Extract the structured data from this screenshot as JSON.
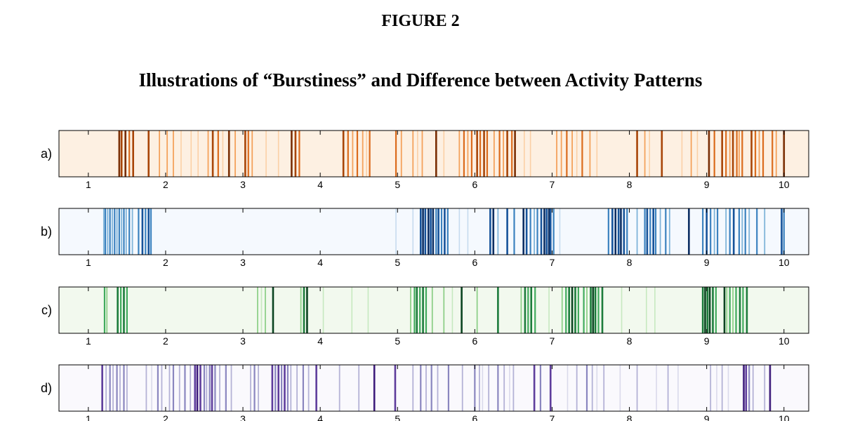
{
  "figure": {
    "label": "FIGURE 2",
    "title": "Illustrations of “Burstiness” and Difference between Activity Patterns"
  },
  "chart_data": {
    "type": "heatmap",
    "xlim": [
      0.62,
      10.32
    ],
    "xticks": [
      1,
      2,
      3,
      4,
      5,
      6,
      7,
      8,
      9,
      10
    ],
    "grid": false,
    "rows": [
      {
        "label": "a)",
        "colormap": "orange",
        "background": "#fdf0e2",
        "palette": [
          "#fbd0a6",
          "#f4a25c",
          "#db6b1c",
          "#a84508",
          "#7a2e04"
        ],
        "events": [
          [
            1.4,
            4
          ],
          [
            1.43,
            3
          ],
          [
            1.48,
            4
          ],
          [
            1.53,
            2
          ],
          [
            1.58,
            3
          ],
          [
            1.78,
            3
          ],
          [
            1.92,
            1
          ],
          [
            2.02,
            1
          ],
          [
            2.1,
            1
          ],
          [
            2.2,
            0
          ],
          [
            2.33,
            0
          ],
          [
            2.42,
            0
          ],
          [
            2.55,
            1
          ],
          [
            2.61,
            3
          ],
          [
            2.68,
            2
          ],
          [
            2.74,
            0
          ],
          [
            2.82,
            4
          ],
          [
            2.9,
            1
          ],
          [
            3.03,
            3
          ],
          [
            3.07,
            2
          ],
          [
            3.12,
            1
          ],
          [
            3.3,
            0
          ],
          [
            3.46,
            0
          ],
          [
            3.63,
            4
          ],
          [
            3.68,
            3
          ],
          [
            3.73,
            2
          ],
          [
            4.3,
            3
          ],
          [
            4.36,
            2
          ],
          [
            4.42,
            1
          ],
          [
            4.48,
            2
          ],
          [
            4.55,
            1
          ],
          [
            4.6,
            0
          ],
          [
            4.64,
            2
          ],
          [
            4.98,
            2
          ],
          [
            5.05,
            1
          ],
          [
            5.2,
            1
          ],
          [
            5.26,
            0
          ],
          [
            5.32,
            1
          ],
          [
            5.5,
            4
          ],
          [
            5.6,
            0
          ],
          [
            5.8,
            1
          ],
          [
            5.86,
            2
          ],
          [
            5.91,
            1
          ],
          [
            5.96,
            2
          ],
          [
            6.03,
            3
          ],
          [
            6.07,
            2
          ],
          [
            6.12,
            3
          ],
          [
            6.16,
            2
          ],
          [
            6.25,
            1
          ],
          [
            6.32,
            2
          ],
          [
            6.37,
            1
          ],
          [
            6.42,
            3
          ],
          [
            6.48,
            2
          ],
          [
            6.52,
            4
          ],
          [
            6.64,
            0
          ],
          [
            6.72,
            0
          ],
          [
            7.06,
            1
          ],
          [
            7.12,
            1
          ],
          [
            7.19,
            2
          ],
          [
            7.26,
            1
          ],
          [
            7.32,
            0
          ],
          [
            7.39,
            2
          ],
          [
            7.49,
            1
          ],
          [
            7.58,
            0
          ],
          [
            8.1,
            3
          ],
          [
            8.2,
            1
          ],
          [
            8.26,
            0
          ],
          [
            8.42,
            3
          ],
          [
            8.68,
            0
          ],
          [
            8.8,
            1
          ],
          [
            8.88,
            0
          ],
          [
            9.03,
            4
          ],
          [
            9.1,
            2
          ],
          [
            9.2,
            3
          ],
          [
            9.25,
            2
          ],
          [
            9.3,
            1
          ],
          [
            9.34,
            3
          ],
          [
            9.39,
            2
          ],
          [
            9.42,
            1
          ],
          [
            9.46,
            2
          ],
          [
            9.58,
            3
          ],
          [
            9.63,
            2
          ],
          [
            9.68,
            1
          ],
          [
            9.73,
            2
          ],
          [
            9.85,
            2
          ],
          [
            9.9,
            1
          ],
          [
            10.0,
            4
          ]
        ]
      },
      {
        "label": "b)",
        "colormap": "blue",
        "background": "#f5f9fe",
        "palette": [
          "#c6dbef",
          "#7fb4d9",
          "#3b82bf",
          "#16539a",
          "#0b2e63"
        ],
        "events": [
          [
            1.2,
            1
          ],
          [
            1.22,
            2
          ],
          [
            1.25,
            1
          ],
          [
            1.28,
            2
          ],
          [
            1.31,
            1
          ],
          [
            1.34,
            2
          ],
          [
            1.37,
            1
          ],
          [
            1.4,
            2
          ],
          [
            1.43,
            1
          ],
          [
            1.46,
            2
          ],
          [
            1.49,
            1
          ],
          [
            1.53,
            2
          ],
          [
            1.57,
            1
          ],
          [
            1.65,
            2
          ],
          [
            1.7,
            3
          ],
          [
            1.74,
            2
          ],
          [
            1.78,
            3
          ],
          [
            1.81,
            2
          ],
          [
            4.98,
            0
          ],
          [
            5.2,
            0
          ],
          [
            5.3,
            3
          ],
          [
            5.33,
            4
          ],
          [
            5.36,
            3
          ],
          [
            5.4,
            4
          ],
          [
            5.43,
            3
          ],
          [
            5.46,
            4
          ],
          [
            5.5,
            2
          ],
          [
            5.53,
            3
          ],
          [
            5.57,
            2
          ],
          [
            5.61,
            3
          ],
          [
            5.65,
            2
          ],
          [
            5.8,
            0
          ],
          [
            5.91,
            0
          ],
          [
            6.2,
            3
          ],
          [
            6.24,
            4
          ],
          [
            6.3,
            1
          ],
          [
            6.42,
            3
          ],
          [
            6.51,
            2
          ],
          [
            6.63,
            4
          ],
          [
            6.67,
            3
          ],
          [
            6.72,
            2
          ],
          [
            6.77,
            1
          ],
          [
            6.81,
            2
          ],
          [
            6.86,
            3
          ],
          [
            6.9,
            4
          ],
          [
            6.93,
            3
          ],
          [
            6.96,
            4
          ],
          [
            6.98,
            3
          ],
          [
            7.02,
            2
          ],
          [
            7.1,
            0
          ],
          [
            7.73,
            2
          ],
          [
            7.78,
            3
          ],
          [
            7.82,
            4
          ],
          [
            7.86,
            3
          ],
          [
            7.89,
            4
          ],
          [
            7.93,
            3
          ],
          [
            7.97,
            2
          ],
          [
            8.1,
            1
          ],
          [
            8.2,
            2
          ],
          [
            8.23,
            3
          ],
          [
            8.27,
            2
          ],
          [
            8.31,
            3
          ],
          [
            8.34,
            2
          ],
          [
            8.4,
            1
          ],
          [
            8.47,
            2
          ],
          [
            8.52,
            1
          ],
          [
            8.77,
            4
          ],
          [
            8.95,
            2
          ],
          [
            9.0,
            3
          ],
          [
            9.05,
            2
          ],
          [
            9.1,
            1
          ],
          [
            9.14,
            2
          ],
          [
            9.25,
            1
          ],
          [
            9.3,
            2
          ],
          [
            9.35,
            3
          ],
          [
            9.42,
            2
          ],
          [
            9.46,
            1
          ],
          [
            9.5,
            2
          ],
          [
            9.55,
            1
          ],
          [
            9.65,
            2
          ],
          [
            9.75,
            1
          ],
          [
            9.97,
            3
          ],
          [
            10.0,
            2
          ]
        ]
      },
      {
        "label": "c)",
        "colormap": "green",
        "background": "#f2f9ee",
        "palette": [
          "#c7e9c0",
          "#8fd089",
          "#41ab5d",
          "#1c7c3b",
          "#0a4420"
        ],
        "events": [
          [
            1.21,
            2
          ],
          [
            1.24,
            1
          ],
          [
            1.38,
            3
          ],
          [
            1.42,
            2
          ],
          [
            1.46,
            3
          ],
          [
            1.5,
            2
          ],
          [
            3.19,
            1
          ],
          [
            3.24,
            0
          ],
          [
            3.29,
            1
          ],
          [
            3.39,
            4
          ],
          [
            3.75,
            1
          ],
          [
            3.79,
            3
          ],
          [
            3.83,
            4
          ],
          [
            4.04,
            0
          ],
          [
            4.41,
            0
          ],
          [
            4.62,
            0
          ],
          [
            5.17,
            1
          ],
          [
            5.22,
            2
          ],
          [
            5.25,
            3
          ],
          [
            5.29,
            2
          ],
          [
            5.33,
            3
          ],
          [
            5.37,
            2
          ],
          [
            5.45,
            1
          ],
          [
            5.6,
            1
          ],
          [
            5.71,
            0
          ],
          [
            5.83,
            4
          ],
          [
            6.03,
            1
          ],
          [
            6.3,
            3
          ],
          [
            6.6,
            1
          ],
          [
            6.65,
            3
          ],
          [
            6.69,
            2
          ],
          [
            6.73,
            3
          ],
          [
            6.78,
            2
          ],
          [
            6.96,
            0
          ],
          [
            7.13,
            1
          ],
          [
            7.18,
            2
          ],
          [
            7.22,
            3
          ],
          [
            7.26,
            4
          ],
          [
            7.3,
            3
          ],
          [
            7.34,
            2
          ],
          [
            7.41,
            2
          ],
          [
            7.45,
            1
          ],
          [
            7.5,
            3
          ],
          [
            7.53,
            4
          ],
          [
            7.56,
            3
          ],
          [
            7.6,
            2
          ],
          [
            7.65,
            3
          ],
          [
            7.9,
            0
          ],
          [
            8.22,
            0
          ],
          [
            8.33,
            0
          ],
          [
            8.95,
            3
          ],
          [
            8.98,
            4
          ],
          [
            9.01,
            3
          ],
          [
            9.04,
            4
          ],
          [
            9.08,
            3
          ],
          [
            9.12,
            2
          ],
          [
            9.23,
            4
          ],
          [
            9.26,
            1
          ],
          [
            9.3,
            2
          ],
          [
            9.34,
            1
          ],
          [
            9.38,
            2
          ],
          [
            9.43,
            3
          ],
          [
            9.47,
            2
          ],
          [
            9.52,
            3
          ]
        ]
      },
      {
        "label": "d)",
        "colormap": "purple",
        "background": "#faf9fd",
        "palette": [
          "#dadaeb",
          "#b4b2d6",
          "#8a86bf",
          "#5e3d9c",
          "#3f1d7c"
        ],
        "events": [
          [
            1.18,
            3
          ],
          [
            1.23,
            1
          ],
          [
            1.28,
            2
          ],
          [
            1.32,
            1
          ],
          [
            1.37,
            2
          ],
          [
            1.41,
            1
          ],
          [
            1.46,
            2
          ],
          [
            1.5,
            1
          ],
          [
            1.75,
            1
          ],
          [
            1.82,
            0
          ],
          [
            1.9,
            2
          ],
          [
            1.95,
            1
          ],
          [
            2.05,
            1
          ],
          [
            2.1,
            2
          ],
          [
            2.18,
            1
          ],
          [
            2.25,
            2
          ],
          [
            2.32,
            1
          ],
          [
            2.38,
            3
          ],
          [
            2.41,
            4
          ],
          [
            2.45,
            3
          ],
          [
            2.5,
            2
          ],
          [
            2.53,
            1
          ],
          [
            2.57,
            2
          ],
          [
            2.6,
            3
          ],
          [
            2.64,
            2
          ],
          [
            2.7,
            1
          ],
          [
            2.78,
            2
          ],
          [
            2.85,
            1
          ],
          [
            3.1,
            1
          ],
          [
            3.15,
            2
          ],
          [
            3.2,
            1
          ],
          [
            3.38,
            3
          ],
          [
            3.42,
            2
          ],
          [
            3.46,
            3
          ],
          [
            3.5,
            2
          ],
          [
            3.54,
            3
          ],
          [
            3.58,
            2
          ],
          [
            3.62,
            1
          ],
          [
            3.7,
            1
          ],
          [
            3.78,
            2
          ],
          [
            3.85,
            1
          ],
          [
            3.95,
            3
          ],
          [
            4.25,
            1
          ],
          [
            4.5,
            1
          ],
          [
            4.7,
            4
          ],
          [
            4.97,
            3
          ],
          [
            5.2,
            1
          ],
          [
            5.3,
            2
          ],
          [
            5.37,
            1
          ],
          [
            5.44,
            2
          ],
          [
            5.52,
            1
          ],
          [
            5.66,
            2
          ],
          [
            5.84,
            1
          ],
          [
            6.0,
            2
          ],
          [
            6.06,
            1
          ],
          [
            6.1,
            0
          ],
          [
            6.18,
            1
          ],
          [
            6.3,
            2
          ],
          [
            6.38,
            1
          ],
          [
            6.45,
            0
          ],
          [
            6.5,
            1
          ],
          [
            6.77,
            3
          ],
          [
            6.85,
            2
          ],
          [
            6.98,
            3
          ],
          [
            7.2,
            0
          ],
          [
            7.32,
            1
          ],
          [
            7.45,
            2
          ],
          [
            7.52,
            1
          ],
          [
            7.58,
            0
          ],
          [
            7.67,
            1
          ],
          [
            7.88,
            0
          ],
          [
            8.1,
            1
          ],
          [
            8.35,
            0
          ],
          [
            8.5,
            1
          ],
          [
            8.63,
            0
          ],
          [
            9.05,
            1
          ],
          [
            9.13,
            0
          ],
          [
            9.2,
            1
          ],
          [
            9.28,
            0
          ],
          [
            9.48,
            4
          ],
          [
            9.51,
            3
          ],
          [
            9.55,
            2
          ],
          [
            9.6,
            1
          ],
          [
            9.75,
            1
          ],
          [
            9.82,
            4
          ]
        ]
      }
    ]
  }
}
